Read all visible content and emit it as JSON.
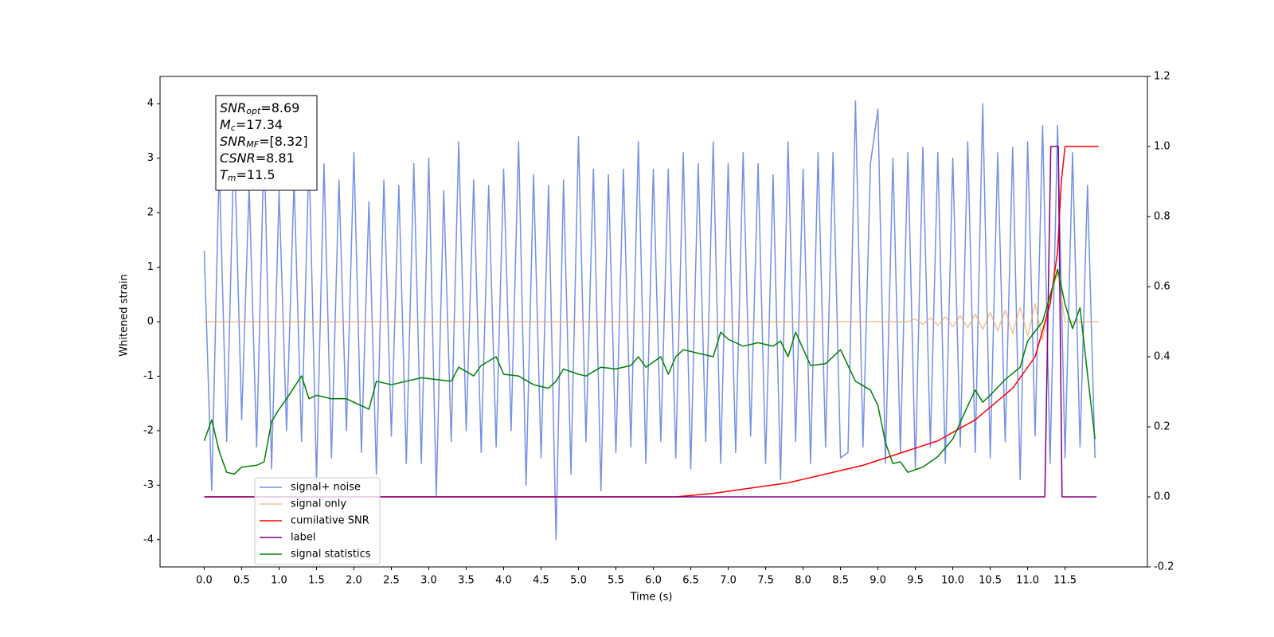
{
  "chart_data": {
    "type": "line",
    "x_label": "Time (s)",
    "y_label": "Whitened strain",
    "xlim": [
      -0.59,
      12.6
    ],
    "ylim": [
      -4.5,
      4.5
    ],
    "y2lim": [
      -0.2,
      1.2
    ],
    "xticks": [
      {
        "value": 0,
        "label": "0.0"
      },
      0.5,
      {
        "value": 1,
        "label": "1.0"
      },
      1.5,
      {
        "value": 2,
        "label": "2.0"
      },
      2.5,
      {
        "value": 3,
        "label": "3.0"
      },
      3.5,
      {
        "value": 4,
        "label": "4.0"
      },
      4.5,
      {
        "value": 5,
        "label": "5.0"
      },
      5.5,
      {
        "value": 6,
        "label": "6.0"
      },
      6.5,
      {
        "value": 7,
        "label": "7.0"
      },
      7.5,
      {
        "value": 8,
        "label": "8.0"
      },
      8.5,
      {
        "value": 9,
        "label": "9.0"
      },
      9.5,
      {
        "value": 10,
        "label": "10.0"
      },
      10.5,
      {
        "value": 11,
        "label": "11.0"
      },
      11.5
    ],
    "yticks": [
      -4,
      -3,
      -2,
      -1,
      0,
      1,
      2,
      3,
      4
    ],
    "y2ticks": [
      -0.2,
      {
        "value": 0,
        "label": "0.0"
      },
      0.2,
      0.4,
      0.6,
      0.8,
      {
        "value": 1,
        "label": "1.0"
      },
      1.2
    ],
    "legend": "lower left",
    "annotations": [
      {
        "main": "SNR",
        "sub": "opt",
        "value": "=8.69"
      },
      {
        "main": "M",
        "sub": "c",
        "value": "=17.34"
      },
      {
        "main": "SNR",
        "sub": "MF",
        "value": "=[8.32]"
      },
      {
        "main": "CSNR",
        "value": "=8.81"
      },
      {
        "main": "T",
        "sub": "m",
        "value": "=11.5"
      }
    ],
    "series": [
      {
        "name": "signal+ noise",
        "color": "#7590e6",
        "x": [
          0.0,
          0.1,
          0.2,
          0.3,
          0.4,
          0.5,
          0.6,
          0.7,
          0.8,
          0.9,
          1.0,
          1.1,
          1.2,
          1.3,
          1.4,
          1.5,
          1.6,
          1.7,
          1.8,
          1.9,
          2.0,
          2.1,
          2.2,
          2.3,
          2.4,
          2.5,
          2.6,
          2.7,
          2.8,
          2.9,
          3.0,
          3.1,
          3.2,
          3.3,
          3.4,
          3.5,
          3.6,
          3.7,
          3.8,
          3.9,
          4.0,
          4.1,
          4.2,
          4.3,
          4.4,
          4.5,
          4.6,
          4.7,
          4.8,
          4.9,
          5.0,
          5.1,
          5.2,
          5.3,
          5.4,
          5.5,
          5.6,
          5.7,
          5.8,
          5.9,
          6.0,
          6.1,
          6.2,
          6.3,
          6.4,
          6.5,
          6.6,
          6.7,
          6.8,
          6.9,
          7.0,
          7.1,
          7.2,
          7.3,
          7.4,
          7.5,
          7.6,
          7.7,
          7.8,
          7.9,
          8.0,
          8.1,
          8.2,
          8.3,
          8.4,
          8.5,
          8.6,
          8.7,
          8.8,
          8.9,
          9.0,
          9.1,
          9.2,
          9.3,
          9.4,
          9.5,
          9.6,
          9.7,
          9.8,
          9.9,
          10.0,
          10.1,
          10.2,
          10.3,
          10.4,
          10.5,
          10.6,
          10.7,
          10.8,
          10.9,
          11.0,
          11.1,
          11.2,
          11.3,
          11.4,
          11.5,
          11.6,
          11.7,
          11.8,
          11.9
        ],
        "values": [
          1.3,
          -3.1,
          2.9,
          -2.2,
          3.4,
          -1.8,
          2.5,
          -2.3,
          3.3,
          -2.7,
          2.4,
          -2.0,
          2.6,
          -2.2,
          3.1,
          -2.9,
          2.9,
          -2.5,
          2.6,
          -2.0,
          3.1,
          -2.4,
          2.2,
          -2.8,
          2.6,
          -2.1,
          2.5,
          -2.6,
          2.9,
          -2.6,
          3.0,
          -3.2,
          2.4,
          -2.2,
          3.3,
          -2.0,
          2.6,
          -2.4,
          2.5,
          -2.3,
          2.8,
          -2.0,
          3.3,
          -3.0,
          2.7,
          -2.5,
          2.5,
          -4.0,
          2.6,
          -2.8,
          3.4,
          -2.2,
          2.8,
          -3.1,
          2.7,
          -2.4,
          2.8,
          -2.3,
          3.3,
          -2.6,
          2.8,
          -2.2,
          2.8,
          -2.5,
          3.1,
          -2.7,
          2.9,
          -2.2,
          3.3,
          -2.6,
          2.9,
          -2.4,
          3.1,
          -2.1,
          2.9,
          -2.6,
          2.7,
          -2.9,
          3.3,
          -2.2,
          2.8,
          -2.6,
          3.1,
          -2.3,
          3.1,
          -2.5,
          -2.4,
          4.05,
          -2.3,
          2.9,
          3.9,
          -2.6,
          3.0,
          -2.4,
          3.1,
          -2.7,
          3.2,
          -2.3,
          3.1,
          -2.6,
          3.0,
          -2.3,
          3.3,
          -2.4,
          4.0,
          -2.5,
          3.1,
          -2.2,
          3.2,
          -2.9,
          3.3,
          -2.1,
          3.6,
          -2.6,
          3.6,
          -2.5,
          3.1,
          -2.3,
          2.5,
          -2.5
        ]
      },
      {
        "name": "signal only",
        "color": "#f0a860",
        "x": [
          0.0,
          9.4,
          9.5,
          9.6,
          9.7,
          9.8,
          9.9,
          10.0,
          10.1,
          10.2,
          10.3,
          10.4,
          10.5,
          10.6,
          10.7,
          10.8,
          10.9,
          11.0,
          11.1,
          11.2,
          11.3,
          11.4,
          11.5,
          11.95
        ],
        "values": [
          0,
          0,
          0.05,
          -0.05,
          0.07,
          -0.07,
          0.09,
          -0.09,
          0.11,
          -0.11,
          0.14,
          -0.14,
          0.17,
          -0.17,
          0.21,
          -0.21,
          0.26,
          -0.26,
          0.33,
          -0.33,
          0.45,
          0.9,
          0,
          0
        ]
      },
      {
        "name": "cumilative SNR",
        "color": "#ff0000",
        "axis": "y2",
        "x": [
          0.0,
          6.3,
          6.8,
          7.3,
          7.8,
          8.3,
          8.8,
          9.3,
          9.8,
          10.3,
          10.8,
          11.1,
          11.3,
          11.4,
          11.45,
          11.5,
          11.95
        ],
        "values": [
          0,
          0,
          0.01,
          0.025,
          0.04,
          0.065,
          0.09,
          0.125,
          0.16,
          0.22,
          0.31,
          0.4,
          0.55,
          0.7,
          0.9,
          1.0,
          1.0
        ]
      },
      {
        "name": "label",
        "color": "#800080",
        "axis": "y2",
        "x": [
          0.0,
          11.23,
          11.31,
          11.41,
          11.46,
          11.92
        ],
        "values": [
          0,
          0,
          1,
          1,
          0,
          0
        ]
      },
      {
        "name": "signal statistics",
        "color": "#008000",
        "axis": "y2",
        "x": [
          0.0,
          0.1,
          0.2,
          0.3,
          0.4,
          0.5,
          0.7,
          0.8,
          0.9,
          1.0,
          1.1,
          1.3,
          1.4,
          1.5,
          1.7,
          1.9,
          2.1,
          2.2,
          2.3,
          2.5,
          2.7,
          2.9,
          3.1,
          3.3,
          3.4,
          3.6,
          3.7,
          3.9,
          4.0,
          4.2,
          4.4,
          4.6,
          4.7,
          4.8,
          5.0,
          5.1,
          5.3,
          5.5,
          5.7,
          5.8,
          5.9,
          6.1,
          6.2,
          6.3,
          6.4,
          6.6,
          6.8,
          6.9,
          7.0,
          7.2,
          7.4,
          7.6,
          7.7,
          7.8,
          7.9,
          8.1,
          8.3,
          8.5,
          8.7,
          8.9,
          9.0,
          9.1,
          9.2,
          9.3,
          9.4,
          9.6,
          9.8,
          10.0,
          10.2,
          10.3,
          10.4,
          10.5,
          10.7,
          10.9,
          11.0,
          11.2,
          11.4,
          11.5,
          11.6,
          11.7,
          11.8,
          11.9
        ],
        "values": [
          0.16,
          0.22,
          0.13,
          0.07,
          0.065,
          0.085,
          0.09,
          0.1,
          0.215,
          0.25,
          0.28,
          0.345,
          0.28,
          0.29,
          0.28,
          0.28,
          0.26,
          0.25,
          0.33,
          0.32,
          0.33,
          0.34,
          0.335,
          0.33,
          0.37,
          0.345,
          0.375,
          0.4,
          0.35,
          0.345,
          0.32,
          0.31,
          0.33,
          0.365,
          0.35,
          0.345,
          0.37,
          0.365,
          0.375,
          0.4,
          0.37,
          0.4,
          0.35,
          0.4,
          0.42,
          0.41,
          0.4,
          0.47,
          0.45,
          0.43,
          0.44,
          0.43,
          0.445,
          0.4,
          0.47,
          0.375,
          0.38,
          0.42,
          0.33,
          0.305,
          0.26,
          0.155,
          0.095,
          0.1,
          0.07,
          0.085,
          0.115,
          0.165,
          0.26,
          0.305,
          0.27,
          0.29,
          0.335,
          0.37,
          0.445,
          0.5,
          0.65,
          0.55,
          0.48,
          0.54,
          0.35,
          0.165
        ]
      }
    ]
  }
}
